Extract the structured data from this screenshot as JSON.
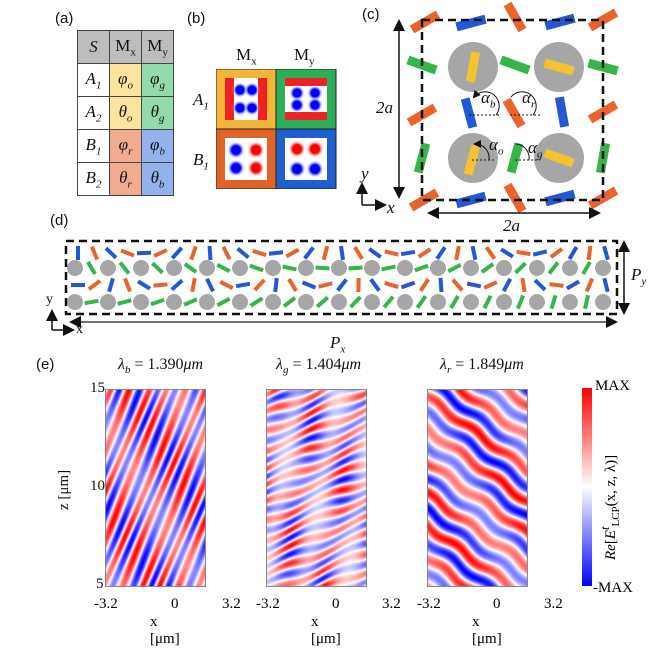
{
  "panels": {
    "a": "(a)",
    "b": "(b)",
    "c": "(c)",
    "d": "(d)",
    "e": "(e)"
  },
  "table": {
    "header": [
      {
        "base": "S",
        "sub": ""
      },
      {
        "base": "M",
        "sub": "x"
      },
      {
        "base": "M",
        "sub": "y"
      }
    ],
    "rows": [
      {
        "s": {
          "base": "A",
          "sub": "1"
        },
        "mx": {
          "base": "φ",
          "sub": "o"
        },
        "my": {
          "base": "φ",
          "sub": "g"
        }
      },
      {
        "s": {
          "base": "A",
          "sub": "2"
        },
        "mx": {
          "base": "θ",
          "sub": "o"
        },
        "my": {
          "base": "θ",
          "sub": "g"
        }
      },
      {
        "s": {
          "base": "B",
          "sub": "1"
        },
        "mx": {
          "base": "φ",
          "sub": "r"
        },
        "my": {
          "base": "φ",
          "sub": "b"
        }
      },
      {
        "s": {
          "base": "B",
          "sub": "2"
        },
        "mx": {
          "base": "θ",
          "sub": "r"
        },
        "my": {
          "base": "θ",
          "sub": "b"
        }
      }
    ],
    "colors": {
      "header": "#bdbdbd",
      "o": "#fde3a0",
      "g": "#93dbab",
      "r": "#f0ab90",
      "b": "#93b2ec",
      "s": "#ffffff"
    }
  },
  "modes": {
    "cols": [
      {
        "base": "M",
        "sub": "x"
      },
      {
        "base": "M",
        "sub": "y"
      }
    ],
    "rows": [
      {
        "base": "A",
        "sub": "1"
      },
      {
        "base": "B",
        "sub": "1"
      }
    ],
    "frame_colors": {
      "A1Mx": "#f4b63a",
      "A1My": "#2fae5a",
      "B1Mx": "#df6428",
      "B1My": "#1f5fd0"
    }
  },
  "unit_cell": {
    "side_label": "2a",
    "bottom_label": "2a",
    "angles": [
      {
        "base": "α",
        "sub": "b"
      },
      {
        "base": "α",
        "sub": "r"
      },
      {
        "base": "α",
        "sub": "o"
      },
      {
        "base": "α",
        "sub": "g"
      }
    ],
    "axis_x": "x",
    "axis_y": "y",
    "colors": {
      "orange": "#e8642a",
      "blue": "#2357d6",
      "green": "#35b54a",
      "yellow": "#f5c232",
      "pillar": "#a6a6a6"
    }
  },
  "supercell": {
    "px": {
      "base": "P",
      "sub": "x"
    },
    "py": {
      "base": "P",
      "sub": "y"
    },
    "axis_x": "x",
    "axis_y": "y"
  },
  "fields": {
    "titles": [
      {
        "base": "λ",
        "sub": "b",
        "value": " = 1.390",
        "unit": "μm"
      },
      {
        "base": "λ",
        "sub": "g",
        "value": " = 1.404",
        "unit": "μm"
      },
      {
        "base": "λ",
        "sub": "r",
        "value": " = 1.849",
        "unit": "μm"
      }
    ],
    "ylabel": "z [μm]",
    "yticks": [
      "15",
      "10",
      "5"
    ],
    "xticks": [
      "-3.2",
      "0",
      "3.2"
    ],
    "xlabel": "x [μm]",
    "colorbar": {
      "max": "MAX",
      "min": "-MAX",
      "label_re": "Re",
      "label_e": "E",
      "sup": "t",
      "sub": "LCP",
      "args": "(x, z, λ)]"
    }
  }
}
